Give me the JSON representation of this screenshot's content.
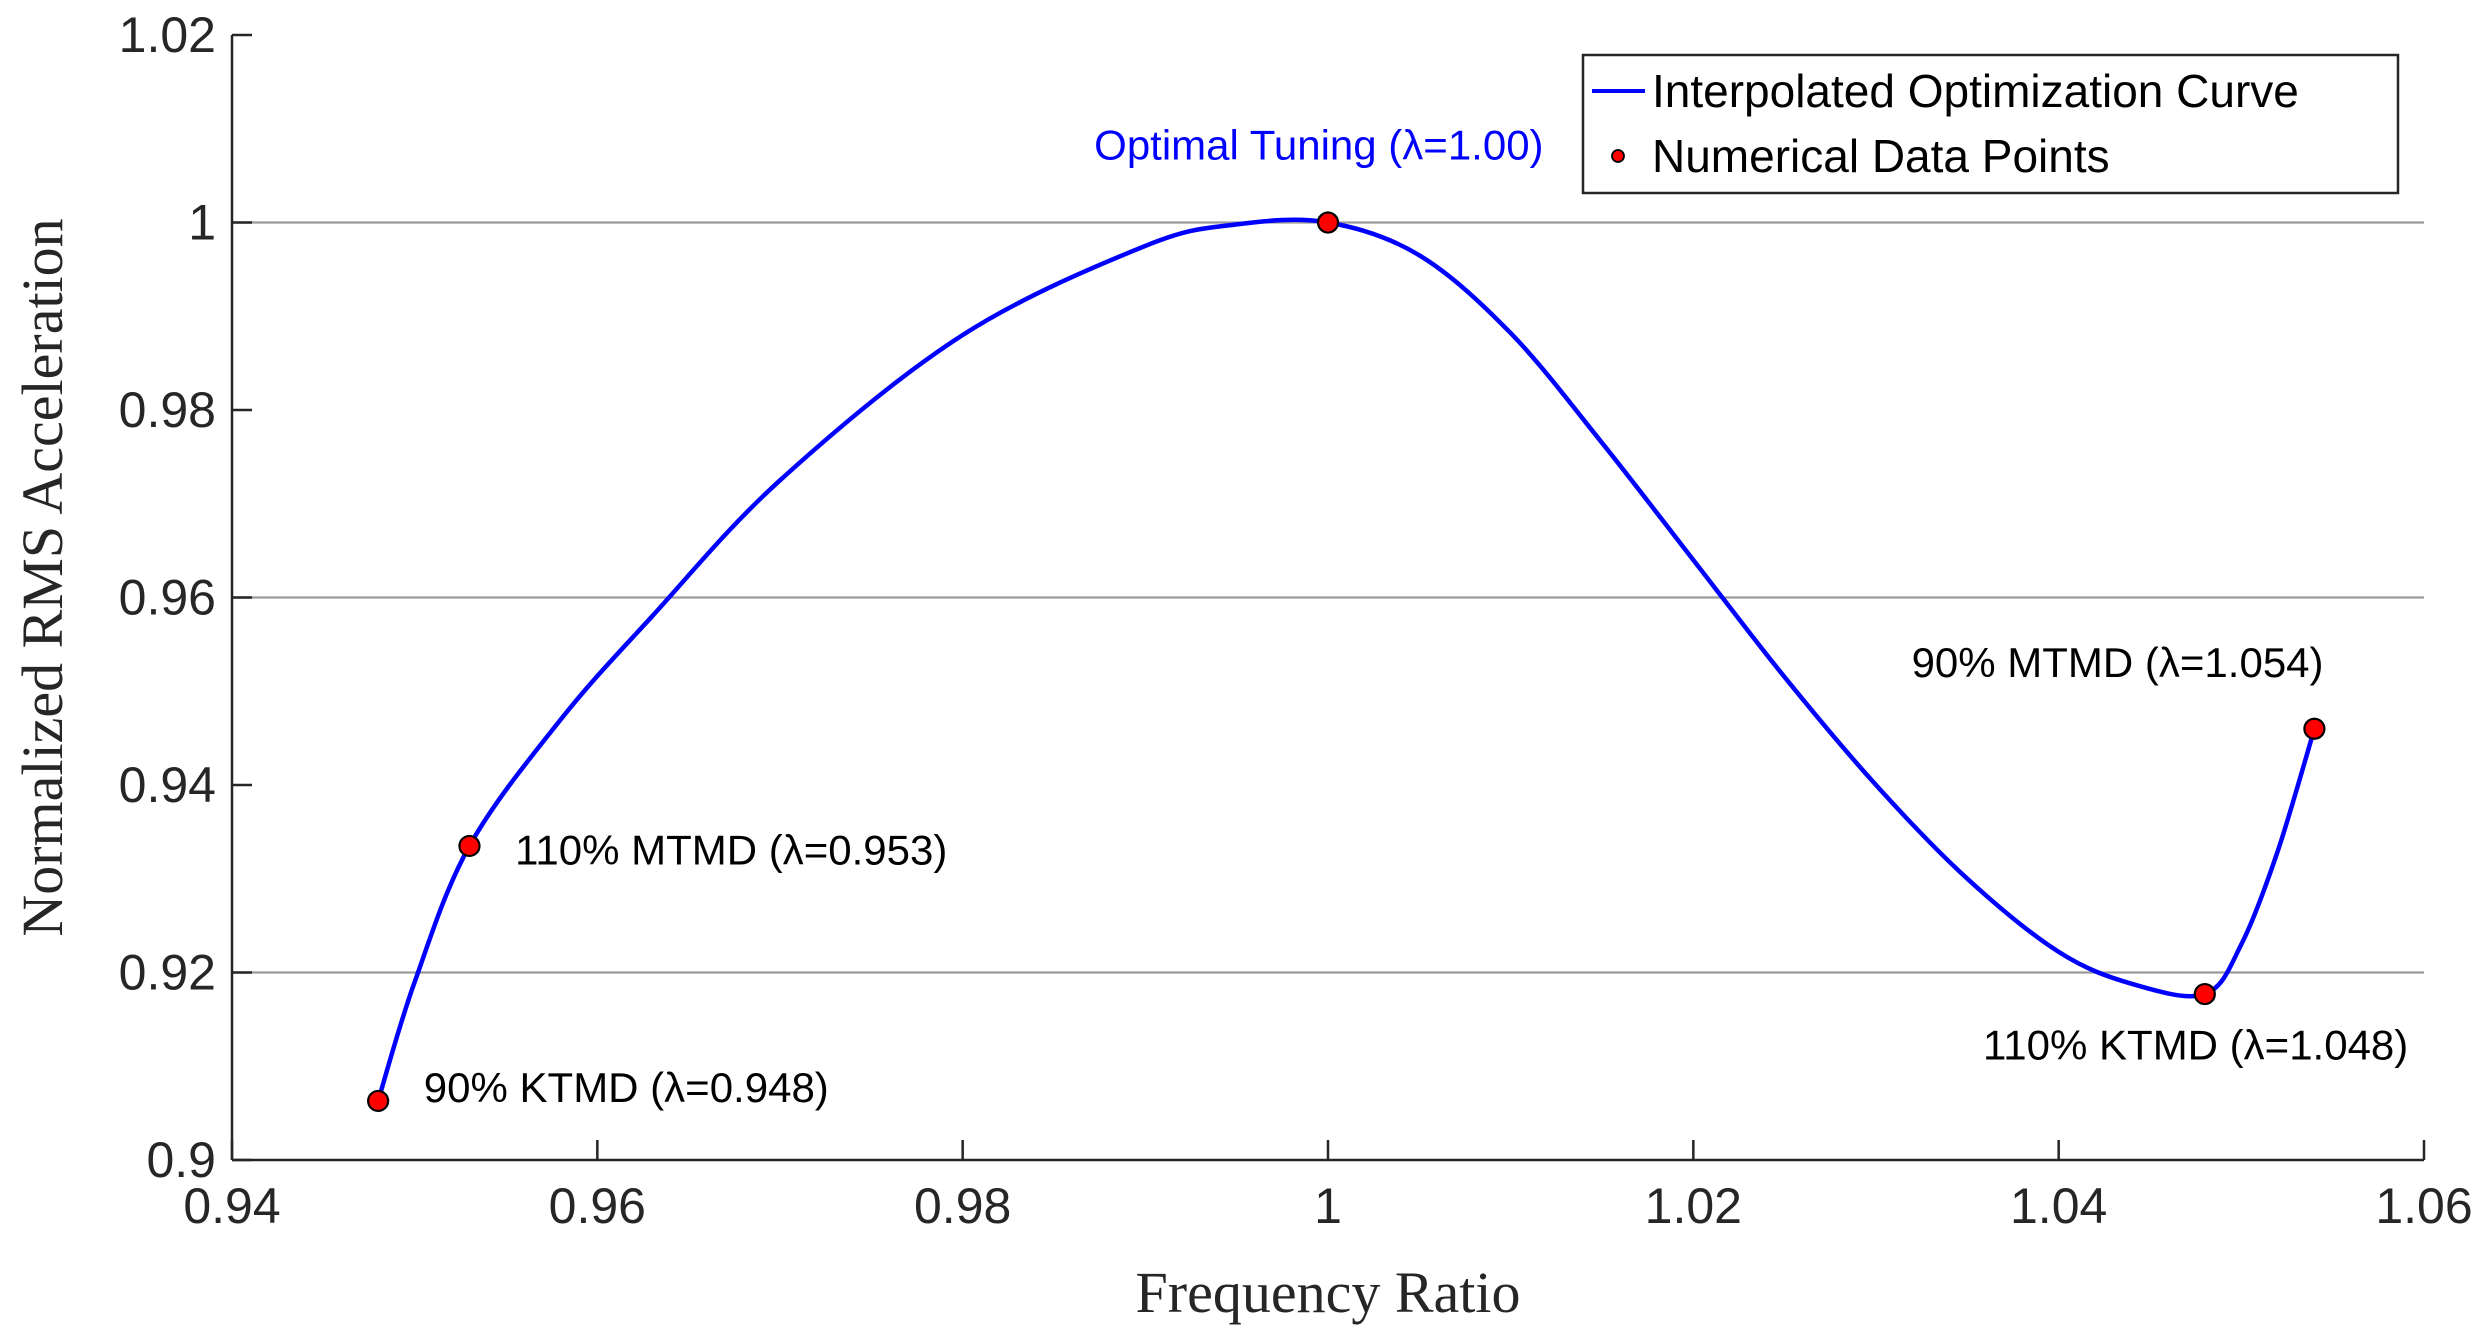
{
  "chart_data": {
    "type": "line",
    "title": "",
    "xlabel": "Frequency Ratio",
    "ylabel": "Normalized RMS Acceleration",
    "xlim": [
      0.94,
      1.06
    ],
    "ylim": [
      0.9,
      1.02
    ],
    "xticks": [
      0.94,
      0.96,
      0.98,
      1.0,
      1.02,
      1.04,
      1.06
    ],
    "xtick_labels": [
      "0.94",
      "0.96",
      "0.98",
      "1",
      "1.02",
      "1.04",
      "1.06"
    ],
    "yticks": [
      0.9,
      0.92,
      0.94,
      0.96,
      0.98,
      1.0,
      1.02
    ],
    "ytick_labels": [
      "0.9",
      "0.92",
      "0.94",
      "0.96",
      "0.98",
      "1",
      "1.02"
    ],
    "grid_y": [
      0.92,
      0.96,
      1.0
    ],
    "legend_position": "top-right",
    "colors": {
      "curve": "#0000ff",
      "marker_fill": "#ff0000",
      "marker_edge": "#000000",
      "grid": "#9a9a9a",
      "optimal_label": "#0000ff"
    },
    "series": [
      {
        "name": "Interpolated Optimization Curve",
        "kind": "line",
        "x": [
          0.948,
          0.95,
          0.953,
          0.958,
          0.963,
          0.97,
          0.98,
          0.99,
          0.995,
          1.0,
          1.005,
          1.01,
          1.015,
          1.02,
          1.025,
          1.03,
          1.035,
          1.04,
          1.044,
          1.048,
          1.05,
          1.052,
          1.054
        ],
        "y": [
          0.9063,
          0.919,
          0.9335,
          0.947,
          0.958,
          0.9725,
          0.988,
          0.9975,
          0.9998,
          1.0,
          0.9965,
          0.9882,
          0.9765,
          0.964,
          0.9515,
          0.94,
          0.93,
          0.9222,
          0.9188,
          0.9177,
          0.923,
          0.933,
          0.946
        ]
      },
      {
        "name": "Numerical Data Points",
        "kind": "scatter",
        "x": [
          0.948,
          0.953,
          1.0,
          1.048,
          1.054
        ],
        "y": [
          0.9063,
          0.9335,
          1.0,
          0.9177,
          0.946
        ]
      }
    ],
    "annotations": [
      {
        "text": "Optimal Tuning (λ=1.00)",
        "x": 0.9995,
        "y": 1.0067,
        "anchor": "middle",
        "style": "optimal"
      },
      {
        "text": "110% MTMD (λ=0.953)",
        "x": 0.9555,
        "y": 0.9315,
        "anchor": "start",
        "style": "normal"
      },
      {
        "text": "90% KTMD (λ=0.948)",
        "x": 0.9505,
        "y": 0.9062,
        "anchor": "start",
        "style": "normal"
      },
      {
        "text": "90% MTMD (λ=1.054)",
        "x": 1.0545,
        "y": 0.9515,
        "anchor": "end",
        "style": "normal"
      },
      {
        "text": "110% KTMD (λ=1.048)",
        "x": 1.0475,
        "y": 0.9107,
        "anchor": "middle",
        "style": "normal"
      }
    ]
  }
}
